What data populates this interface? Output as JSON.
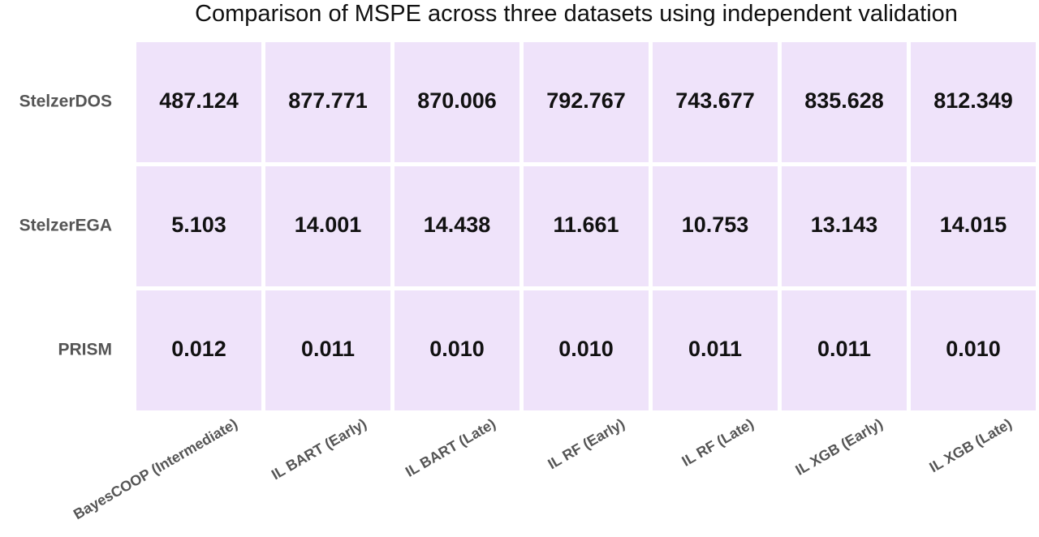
{
  "chart_data": {
    "type": "heatmap",
    "title": "Comparison of MSPE across three datasets using independent validation",
    "rows": [
      "StelzerDOS",
      "StelzerEGA",
      "PRISM"
    ],
    "columns": [
      "BayesCOOP (Intermediate)",
      "IL BART (Early)",
      "IL BART (Late)",
      "IL RF (Early)",
      "IL RF (Late)",
      "IL XGB (Early)",
      "IL XGB (Late)"
    ],
    "values": [
      [
        "487.124",
        "877.771",
        "870.006",
        "792.767",
        "743.677",
        "835.628",
        "812.349"
      ],
      [
        "5.103",
        "14.001",
        "14.438",
        "11.661",
        "10.753",
        "13.143",
        "14.015"
      ],
      [
        "0.012",
        "0.011",
        "0.010",
        "0.010",
        "0.011",
        "0.011",
        "0.010"
      ]
    ],
    "cell_color": "#efe3fa",
    "grid": false,
    "legend": "none"
  }
}
